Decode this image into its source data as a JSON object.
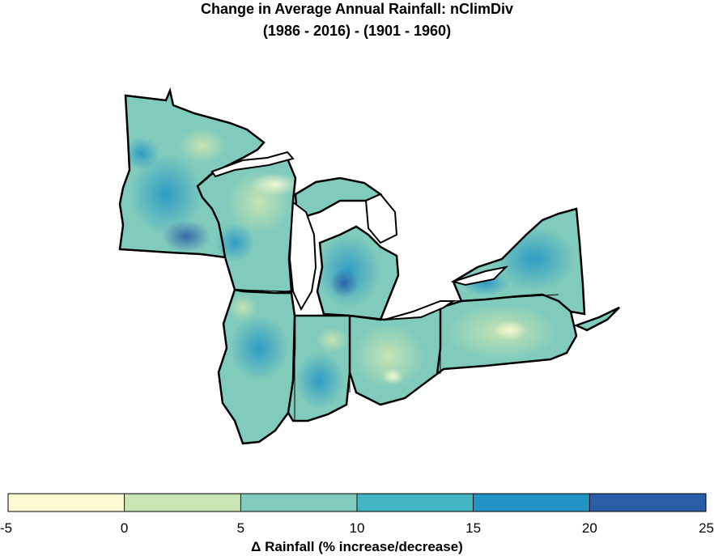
{
  "title": {
    "line1": "Change in Average Annual Rainfall: nClimDiv",
    "line2": "(1986 - 2016) - (1901 - 1960)"
  },
  "legend": {
    "caption": "Δ Rainfall (% increase/decrease)",
    "bins": [
      {
        "from": -5,
        "to": 0,
        "color": "#fdfbd3"
      },
      {
        "from": 0,
        "to": 5,
        "color": "#c9e5b3"
      },
      {
        "from": 5,
        "to": 10,
        "color": "#80cbbc"
      },
      {
        "from": 10,
        "to": 15,
        "color": "#44b5c3"
      },
      {
        "from": 15,
        "to": 20,
        "color": "#2194c5"
      },
      {
        "from": 20,
        "to": 25,
        "color": "#2b5ea8"
      }
    ],
    "tick_labels": [
      "-5",
      "0",
      "5",
      "10",
      "15",
      "20",
      "25"
    ]
  },
  "map": {
    "region": "Great Lakes / Midwest states",
    "states": [
      "Minnesota",
      "Wisconsin",
      "Michigan",
      "Illinois",
      "Indiana",
      "Ohio",
      "Pennsylvania",
      "New York"
    ],
    "outline_color": "#000000",
    "lake_color": "#ffffff"
  }
}
